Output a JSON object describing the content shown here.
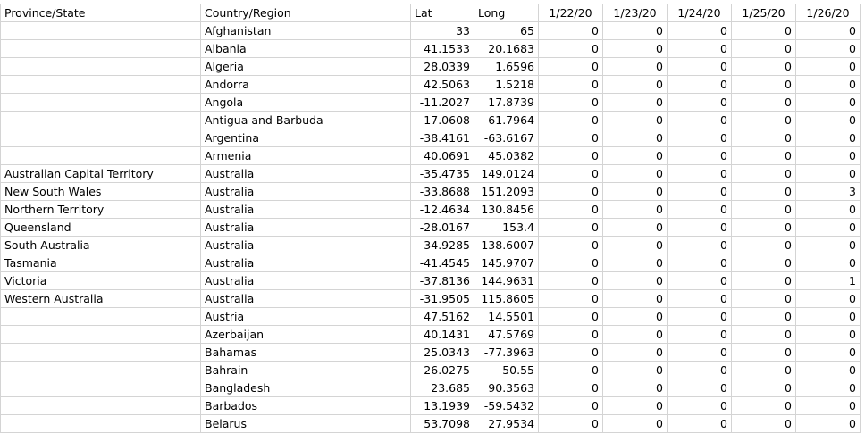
{
  "header": [
    "Province/State",
    "Country/Region",
    "Lat",
    "Long",
    "1/22/20",
    "1/23/20",
    "1/24/20",
    "1/25/20",
    "1/26/20"
  ],
  "rows": [
    [
      "",
      "Afghanistan",
      "33",
      "65",
      "0",
      "0",
      "0",
      "0",
      "0"
    ],
    [
      "",
      "Albania",
      "41.1533",
      "20.1683",
      "0",
      "0",
      "0",
      "0",
      "0"
    ],
    [
      "",
      "Algeria",
      "28.0339",
      "1.6596",
      "0",
      "0",
      "0",
      "0",
      "0"
    ],
    [
      "",
      "Andorra",
      "42.5063",
      "1.5218",
      "0",
      "0",
      "0",
      "0",
      "0"
    ],
    [
      "",
      "Angola",
      "-11.2027",
      "17.8739",
      "0",
      "0",
      "0",
      "0",
      "0"
    ],
    [
      "",
      "Antigua and Barbuda",
      "17.0608",
      "-61.7964",
      "0",
      "0",
      "0",
      "0",
      "0"
    ],
    [
      "",
      "Argentina",
      "-38.4161",
      "-63.6167",
      "0",
      "0",
      "0",
      "0",
      "0"
    ],
    [
      "",
      "Armenia",
      "40.0691",
      "45.0382",
      "0",
      "0",
      "0",
      "0",
      "0"
    ],
    [
      "Australian Capital Territory",
      "Australia",
      "-35.4735",
      "149.0124",
      "0",
      "0",
      "0",
      "0",
      "0"
    ],
    [
      "New South Wales",
      "Australia",
      "-33.8688",
      "151.2093",
      "0",
      "0",
      "0",
      "0",
      "3"
    ],
    [
      "Northern Territory",
      "Australia",
      "-12.4634",
      "130.8456",
      "0",
      "0",
      "0",
      "0",
      "0"
    ],
    [
      "Queensland",
      "Australia",
      "-28.0167",
      "153.4",
      "0",
      "0",
      "0",
      "0",
      "0"
    ],
    [
      "South Australia",
      "Australia",
      "-34.9285",
      "138.6007",
      "0",
      "0",
      "0",
      "0",
      "0"
    ],
    [
      "Tasmania",
      "Australia",
      "-41.4545",
      "145.9707",
      "0",
      "0",
      "0",
      "0",
      "0"
    ],
    [
      "Victoria",
      "Australia",
      "-37.8136",
      "144.9631",
      "0",
      "0",
      "0",
      "0",
      "1"
    ],
    [
      "Western Australia",
      "Australia",
      "-31.9505",
      "115.8605",
      "0",
      "0",
      "0",
      "0",
      "0"
    ],
    [
      "",
      "Austria",
      "47.5162",
      "14.5501",
      "0",
      "0",
      "0",
      "0",
      "0"
    ],
    [
      "",
      "Azerbaijan",
      "40.1431",
      "47.5769",
      "0",
      "0",
      "0",
      "0",
      "0"
    ],
    [
      "",
      "Bahamas",
      "25.0343",
      "-77.3963",
      "0",
      "0",
      "0",
      "0",
      "0"
    ],
    [
      "",
      "Bahrain",
      "26.0275",
      "50.55",
      "0",
      "0",
      "0",
      "0",
      "0"
    ],
    [
      "",
      "Bangladesh",
      "23.685",
      "90.3563",
      "0",
      "0",
      "0",
      "0",
      "0"
    ],
    [
      "",
      "Barbados",
      "13.1939",
      "-59.5432",
      "0",
      "0",
      "0",
      "0",
      "0"
    ],
    [
      "",
      "Belarus",
      "53.7098",
      "27.9534",
      "0",
      "0",
      "0",
      "0",
      "0"
    ]
  ]
}
